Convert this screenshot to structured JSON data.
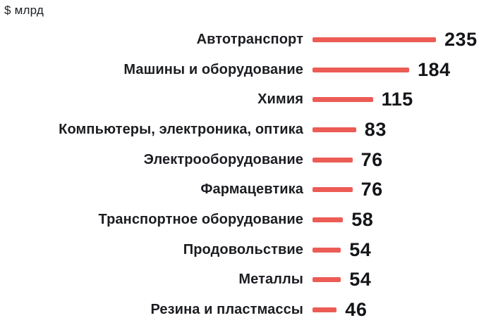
{
  "units_label": "$ млрд",
  "colors": {
    "bar": "#ec5c55",
    "label_text": "#1b1d21",
    "value_text": "#141518",
    "background": "#ffffff"
  },
  "chart_data": {
    "type": "bar",
    "orientation": "horizontal",
    "title": "",
    "units": "$ млрд",
    "categories": [
      "Автотранспорт",
      "Машины и оборудование",
      "Химия",
      "Компьютеры, электроника, оптика",
      "Электрооборудование",
      "Фармацевтика",
      "Транспортное оборудование",
      "Продовольствие",
      "Металлы",
      "Резина и пластмассы"
    ],
    "values": [
      235,
      184,
      115,
      83,
      76,
      76,
      58,
      54,
      54,
      46
    ],
    "xlabel": "",
    "ylabel": "",
    "xlim": [
      0,
      235
    ],
    "grid": false,
    "legend": false,
    "value_labels": true,
    "bars_sorted_descending": true
  }
}
